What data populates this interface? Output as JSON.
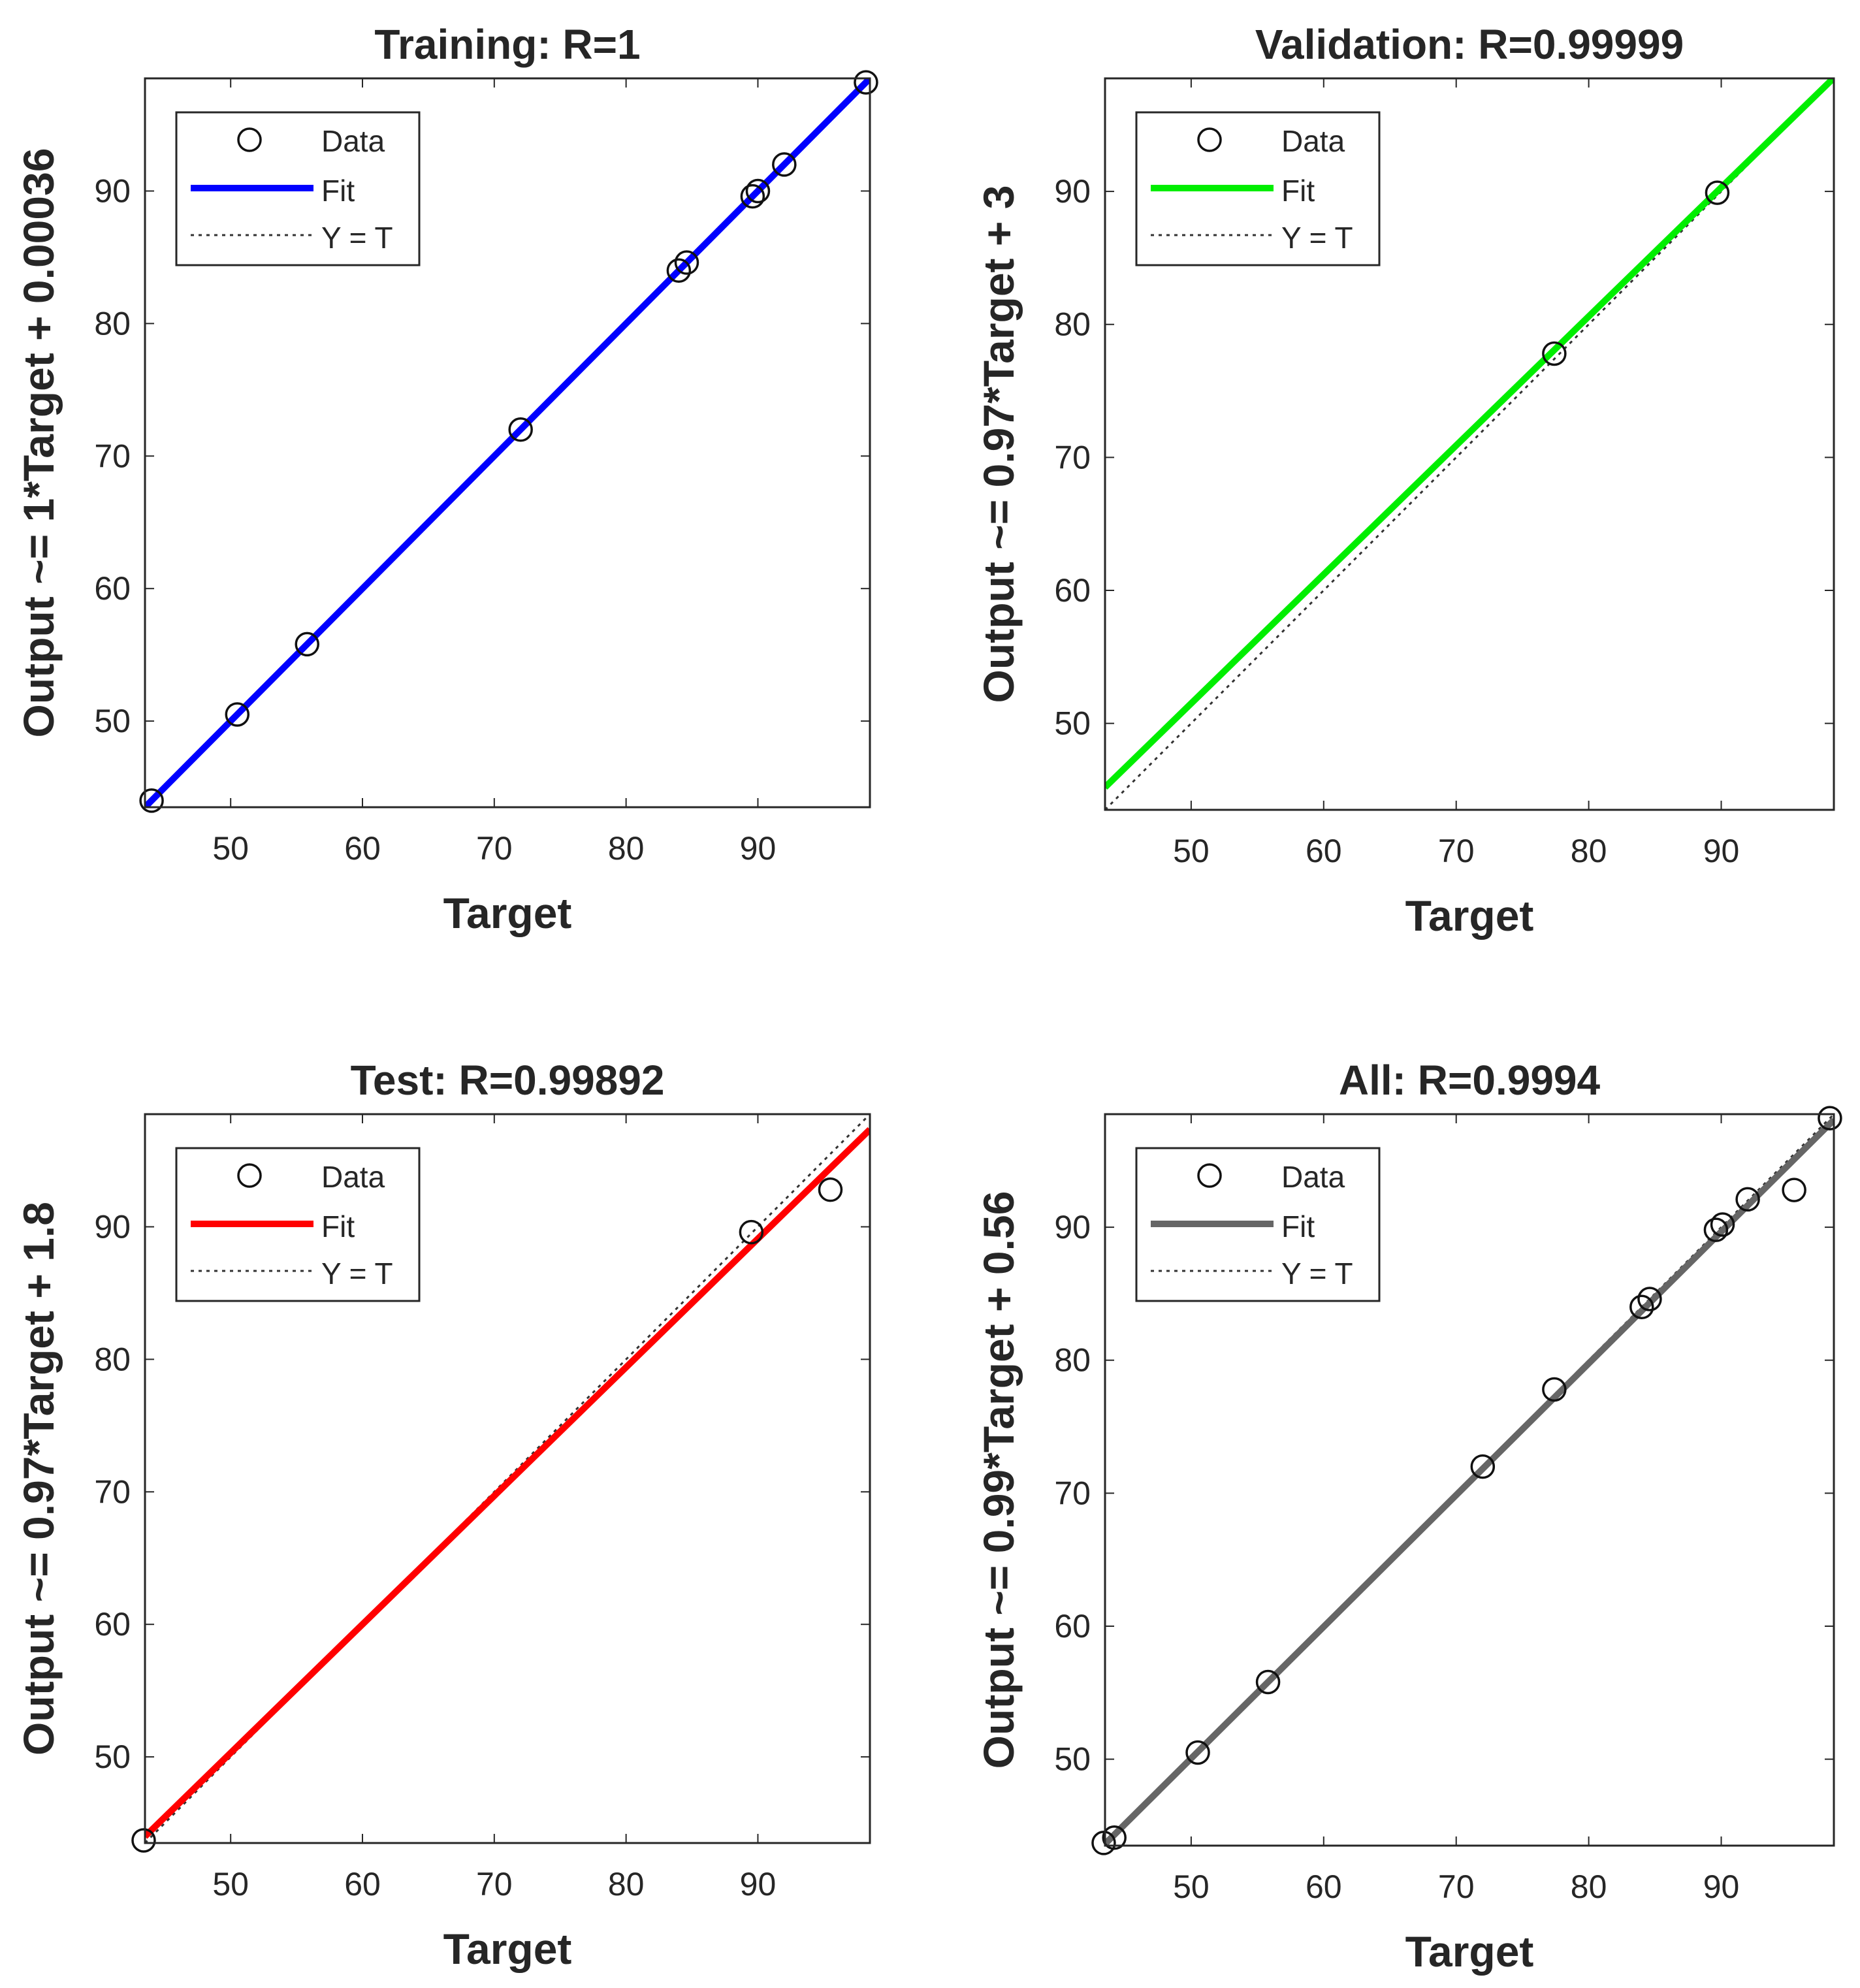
{
  "chart_data": [
    {
      "type": "scatter",
      "title": "Training: R=1",
      "xlabel": "Target",
      "ylabel": "Output ~= 1*Target + 0.00036",
      "xlim": [
        43.5,
        98.5
      ],
      "ylim": [
        43.5,
        98.5
      ],
      "xticks": [
        50,
        60,
        70,
        80,
        90
      ],
      "yticks": [
        50,
        60,
        70,
        80,
        90
      ],
      "fit_color": "#0000ff",
      "fit": {
        "slope": 1,
        "intercept": 0.00036
      },
      "legend": [
        "Data",
        "Fit",
        "Y = T"
      ],
      "legend_position": "top-left",
      "grid": false,
      "series": [
        {
          "name": "Data",
          "x": [
            44.0,
            50.5,
            55.8,
            72.0,
            84.0,
            84.6,
            89.6,
            90.0,
            92.0,
            98.2
          ],
          "y": [
            44.0,
            50.5,
            55.8,
            72.0,
            84.0,
            84.6,
            89.6,
            90.0,
            92.0,
            98.2
          ]
        }
      ]
    },
    {
      "type": "scatter",
      "title": "Validation: R=0.99999",
      "xlabel": "Target",
      "ylabel": "Output ~= 0.97*Target + 3",
      "xlim": [
        43.5,
        98.5
      ],
      "ylim": [
        43.5,
        98.5
      ],
      "xticks": [
        50,
        60,
        70,
        80,
        90
      ],
      "yticks": [
        50,
        60,
        70,
        80,
        90
      ],
      "fit_color": "#00ee00",
      "fit": {
        "slope": 0.97,
        "intercept": 3
      },
      "legend": [
        "Data",
        "Fit",
        "Y = T"
      ],
      "legend_position": "top-left",
      "grid": false,
      "series": [
        {
          "name": "Data",
          "x": [
            77.4,
            89.7
          ],
          "y": [
            77.8,
            89.9
          ]
        }
      ]
    },
    {
      "type": "scatter",
      "title": "Test: R=0.99892",
      "xlabel": "Target",
      "ylabel": "Output ~= 0.97*Target + 1.8",
      "xlim": [
        43.5,
        98.5
      ],
      "ylim": [
        43.5,
        98.5
      ],
      "xticks": [
        50,
        60,
        70,
        80,
        90
      ],
      "yticks": [
        50,
        60,
        70,
        80,
        90
      ],
      "fit_color": "#ff0000",
      "fit": {
        "slope": 0.97,
        "intercept": 1.8
      },
      "legend": [
        "Data",
        "Fit",
        "Y = T"
      ],
      "legend_position": "top-left",
      "grid": false,
      "series": [
        {
          "name": "Data",
          "x": [
            43.4,
            89.5,
            95.5
          ],
          "y": [
            43.7,
            89.6,
            92.8
          ]
        }
      ]
    },
    {
      "type": "scatter",
      "title": "All: R=0.9994",
      "xlabel": "Target",
      "ylabel": "Output ~= 0.99*Target + 0.56",
      "xlim": [
        43.5,
        98.5
      ],
      "ylim": [
        43.5,
        98.5
      ],
      "xticks": [
        50,
        60,
        70,
        80,
        90
      ],
      "yticks": [
        50,
        60,
        70,
        80,
        90
      ],
      "fit_color": "#666666",
      "fit": {
        "slope": 0.99,
        "intercept": 0.56
      },
      "legend": [
        "Data",
        "Fit",
        "Y = T"
      ],
      "legend_position": "top-left",
      "grid": false,
      "series": [
        {
          "name": "Data",
          "x": [
            43.4,
            44.2,
            50.5,
            55.8,
            72.0,
            77.4,
            84.0,
            84.6,
            89.6,
            90.1,
            92.0,
            95.5,
            98.2
          ],
          "y": [
            43.7,
            44.1,
            50.5,
            55.8,
            72.0,
            77.8,
            84.0,
            84.6,
            89.8,
            90.2,
            92.1,
            92.8,
            98.2
          ]
        }
      ]
    }
  ]
}
